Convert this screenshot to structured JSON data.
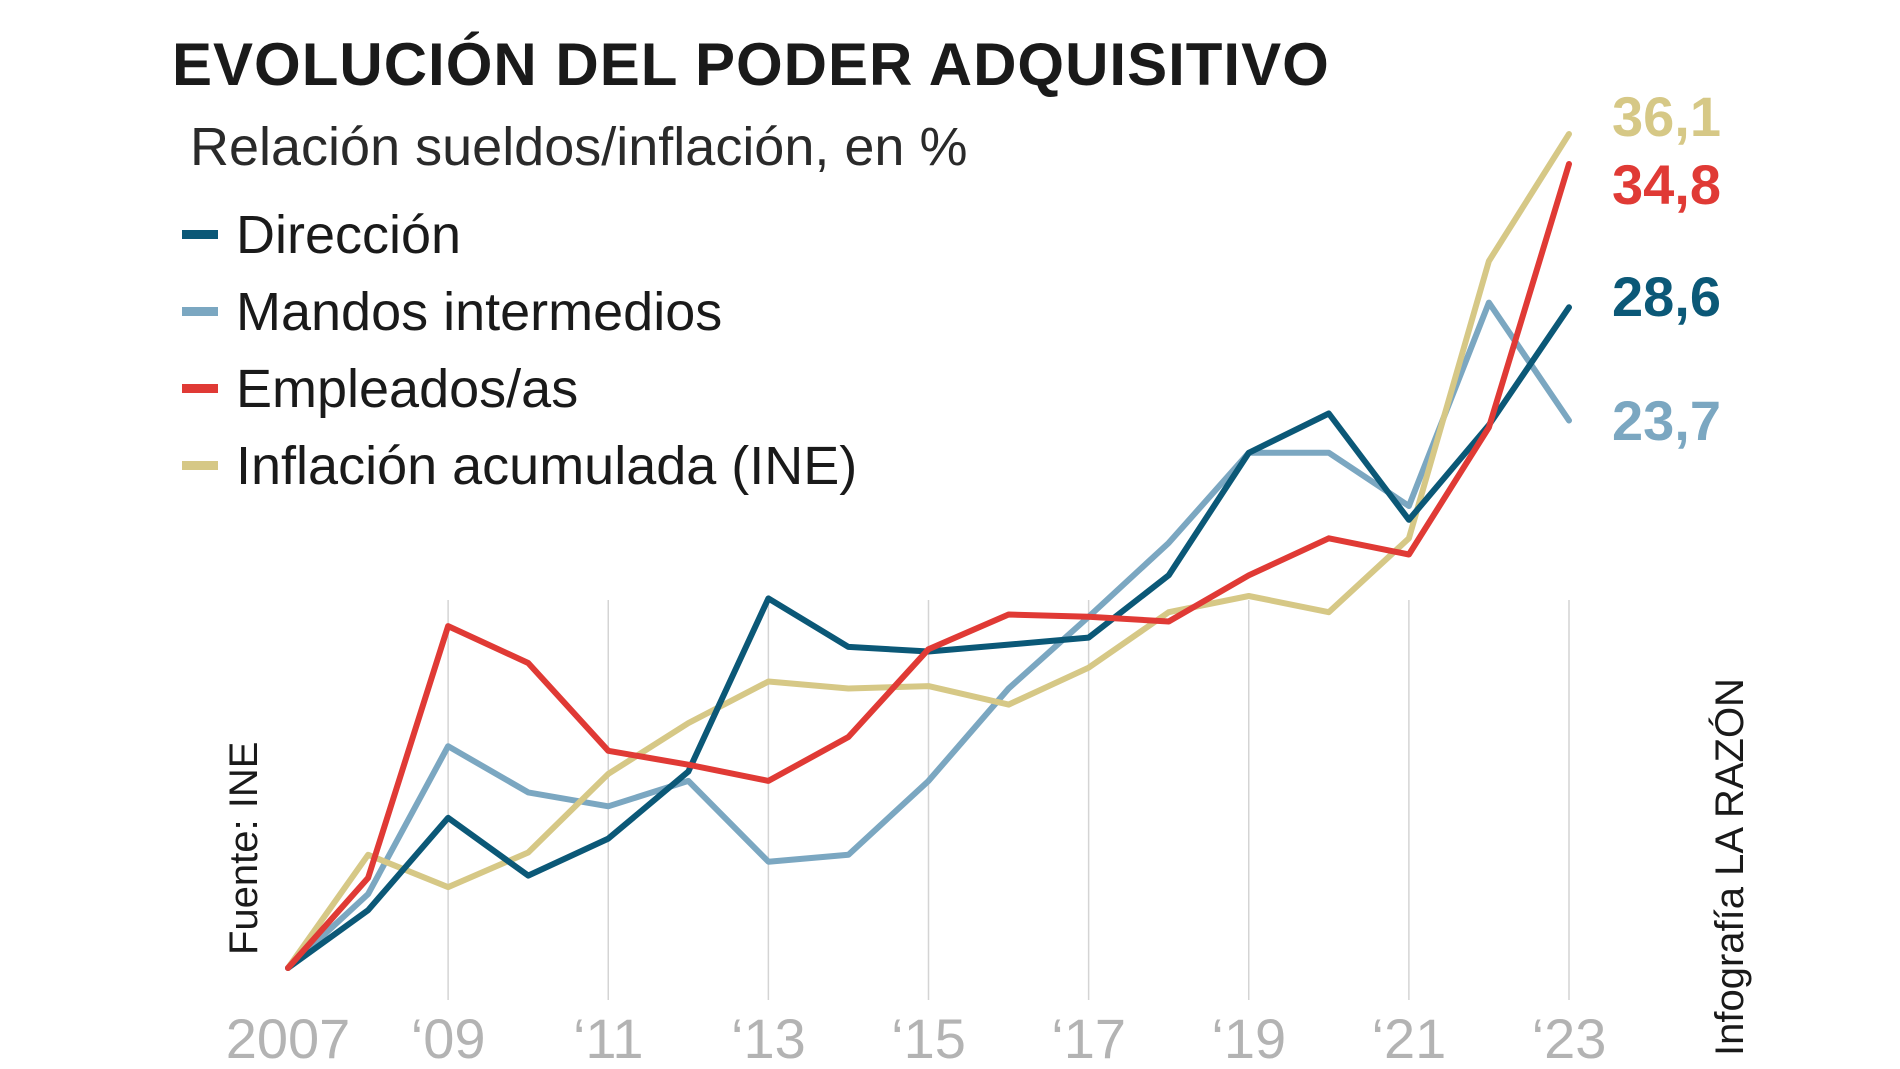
{
  "title": "EVOLUCIÓN DEL PODER ADQUISITIVO",
  "subtitle": "Relación sueldos/inflación, en %",
  "source": "Fuente: INE",
  "credit": "Infografía LA RAZÓN",
  "colors": {
    "direccion": "#0b5877",
    "mandos": "#7ba7c1",
    "empleados": "#e03a35",
    "inflacion": "#d6c886"
  },
  "legend": [
    {
      "label": "Dirección",
      "color": "#0b5877"
    },
    {
      "label": "Mandos intermedios",
      "color": "#7ba7c1"
    },
    {
      "label": "Empleados/as",
      "color": "#e03a35"
    },
    {
      "label": "Inflación acumulada (INE)",
      "color": "#d6c886"
    }
  ],
  "end_labels": {
    "inflacion": "36,1",
    "empleados": "34,8",
    "direccion": "28,6",
    "mandos": "23,7"
  },
  "chart_data": {
    "type": "line",
    "title": "EVOLUCIÓN DEL PODER ADQUISITIVO",
    "subtitle": "Relación sueldos/inflación, en %",
    "xlabel": "",
    "ylabel": "",
    "ylim": [
      0,
      36.1
    ],
    "grid": true,
    "legend_position": "top-left",
    "x": [
      2007,
      2008,
      2009,
      2010,
      2011,
      2012,
      2013,
      2014,
      2015,
      2016,
      2017,
      2018,
      2019,
      2020,
      2021,
      2022,
      2023
    ],
    "tick_values": [
      2007,
      2009,
      2011,
      2013,
      2015,
      2017,
      2019,
      2021,
      2023
    ],
    "tick_labels": [
      "2007",
      "‘09",
      "‘11",
      "‘13",
      "‘15",
      "‘17",
      "‘19",
      "‘21",
      "‘23"
    ],
    "series": [
      {
        "name": "Dirección",
        "key": "direccion",
        "values": [
          0,
          2.5,
          6.5,
          4.0,
          5.6,
          8.5,
          16.0,
          13.9,
          13.7,
          14.0,
          14.3,
          17.0,
          22.3,
          24.0,
          19.4,
          23.5,
          28.6
        ]
      },
      {
        "name": "Mandos intermedios",
        "key": "mandos",
        "values": [
          0,
          3.2,
          9.6,
          7.6,
          7.0,
          8.1,
          4.6,
          4.9,
          8.1,
          12.1,
          15.2,
          18.4,
          22.3,
          22.3,
          20.0,
          28.8,
          23.7
        ]
      },
      {
        "name": "Empleados/as",
        "key": "empleados",
        "values": [
          0,
          3.9,
          14.8,
          13.2,
          9.4,
          8.8,
          8.1,
          10.0,
          13.8,
          15.3,
          15.2,
          15.0,
          17.0,
          18.6,
          17.9,
          23.4,
          34.8
        ]
      },
      {
        "name": "Inflación acumulada (INE)",
        "key": "inflacion",
        "values": [
          0,
          4.9,
          3.5,
          5.0,
          8.4,
          10.6,
          12.4,
          12.1,
          12.2,
          11.4,
          13.0,
          15.4,
          16.1,
          15.4,
          18.6,
          30.6,
          36.1
        ]
      }
    ]
  }
}
